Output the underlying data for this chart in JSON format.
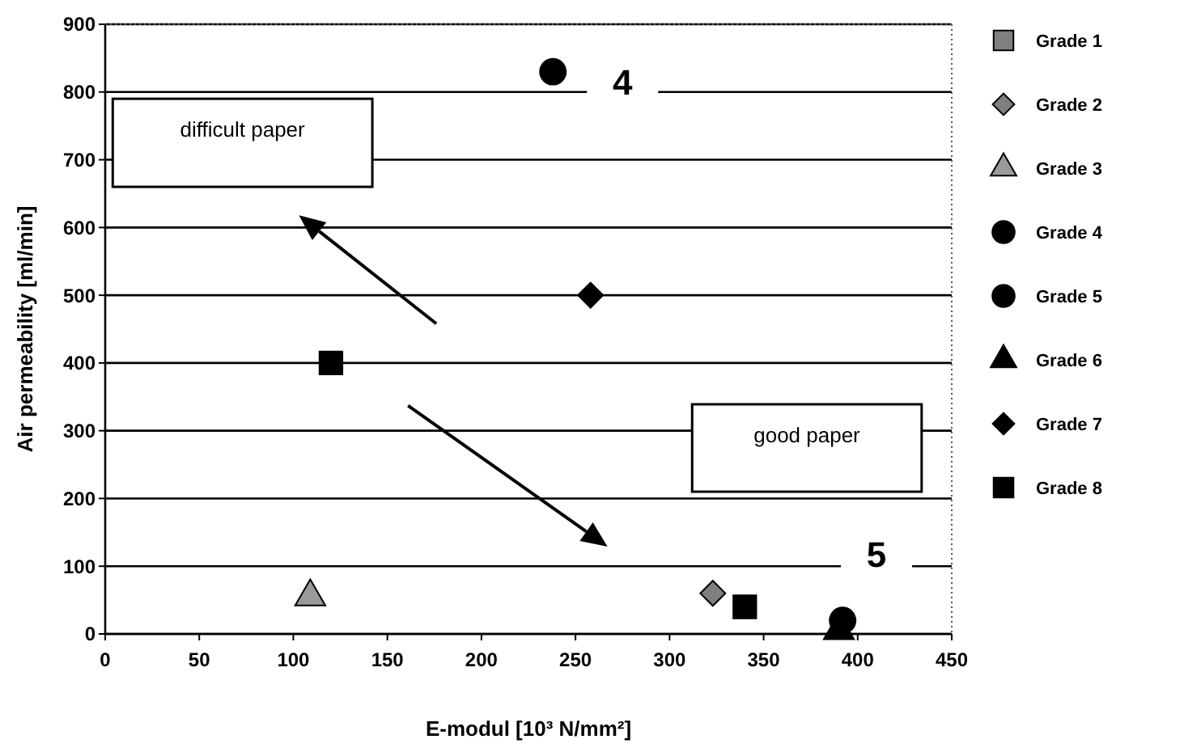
{
  "chart_data": {
    "type": "scatter",
    "xlabel": "E-modul [10³ N/mm²]",
    "ylabel": "Air permeability [ml/min]",
    "xlim": [
      0,
      450
    ],
    "xticks": [
      0,
      50,
      100,
      150,
      200,
      250,
      300,
      350,
      400,
      450
    ],
    "ylim": [
      0,
      900
    ],
    "yticks": [
      0,
      100,
      200,
      300,
      400,
      500,
      600,
      700,
      800,
      900
    ],
    "grid": "y",
    "legend": "right",
    "series": [
      {
        "name": "Grade 1",
        "color": "#7f7f7f",
        "marker": "square",
        "x": [
          null
        ],
        "values": [
          null
        ]
      },
      {
        "name": "Grade 2",
        "color": "#7f7f7f",
        "marker": "diamond",
        "x": [
          323
        ],
        "values": [
          60
        ]
      },
      {
        "name": "Grade 3",
        "color": "#9a9a9a",
        "marker": "triangle",
        "x": [
          109
        ],
        "values": [
          55
        ]
      },
      {
        "name": "Grade 4",
        "color": "#000000",
        "marker": "circle",
        "x": [
          238
        ],
        "values": [
          830
        ]
      },
      {
        "name": "Grade 5",
        "color": "#000000",
        "marker": "circle",
        "x": [
          392
        ],
        "values": [
          20
        ]
      },
      {
        "name": "Grade 6",
        "color": "#000000",
        "marker": "triangle",
        "x": [
          390
        ],
        "values": [
          5
        ]
      },
      {
        "name": "Grade 7",
        "color": "#000000",
        "marker": "diamond",
        "x": [
          258
        ],
        "values": [
          500
        ]
      },
      {
        "name": "Grade 8",
        "color": "#000000",
        "marker": "square",
        "x": [
          120,
          340
        ],
        "values": [
          400,
          40
        ]
      }
    ],
    "annotations": [
      "difficult paper",
      "good paper",
      {
        "text": "4",
        "x": 275,
        "y": 815
      },
      {
        "text": "5",
        "x": 410,
        "y": 118
      }
    ]
  }
}
